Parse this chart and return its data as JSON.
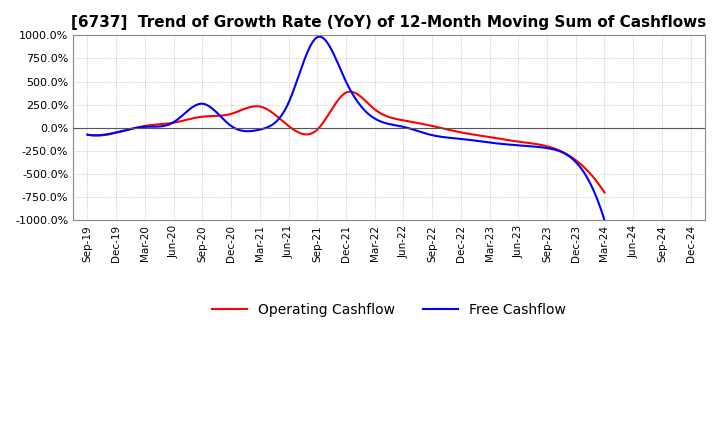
{
  "title": "[6737]  Trend of Growth Rate (YoY) of 12-Month Moving Sum of Cashflows",
  "title_fontsize": 11,
  "ylim": [
    -1000,
    1000
  ],
  "yticks": [
    -1000,
    -750,
    -500,
    -250,
    0,
    250,
    500,
    750,
    1000
  ],
  "ytick_labels": [
    "-1000.0%",
    "-750.0%",
    "-500.0%",
    "-250.0%",
    "0.0%",
    "250.0%",
    "500.0%",
    "750.0%",
    "1000.0%"
  ],
  "background_color": "#ffffff",
  "grid_color": "#aaaaaa",
  "operating_color": "#ff0000",
  "free_color": "#0000ff",
  "legend_labels": [
    "Operating Cashflow",
    "Free Cashflow"
  ],
  "x_labels": [
    "Sep-19",
    "Dec-19",
    "Mar-20",
    "Jun-20",
    "Sep-20",
    "Dec-20",
    "Mar-21",
    "Jun-21",
    "Sep-21",
    "Dec-21",
    "Mar-22",
    "Jun-22",
    "Sep-22",
    "Dec-22",
    "Mar-23",
    "Jun-23",
    "Sep-23",
    "Dec-23",
    "Mar-24",
    "Jun-24",
    "Sep-24",
    "Dec-24"
  ],
  "operating_cashflow": [
    -75,
    -55,
    20,
    55,
    120,
    150,
    230,
    20,
    -20,
    380,
    200,
    80,
    20,
    -50,
    -100,
    -150,
    -200,
    -350,
    -700,
    null,
    null,
    null
  ],
  "free_cashflow": [
    -75,
    -50,
    10,
    60,
    260,
    20,
    -20,
    270,
    980,
    500,
    100,
    10,
    -80,
    -120,
    -160,
    -190,
    -220,
    -370,
    -1000,
    null,
    null,
    null
  ]
}
